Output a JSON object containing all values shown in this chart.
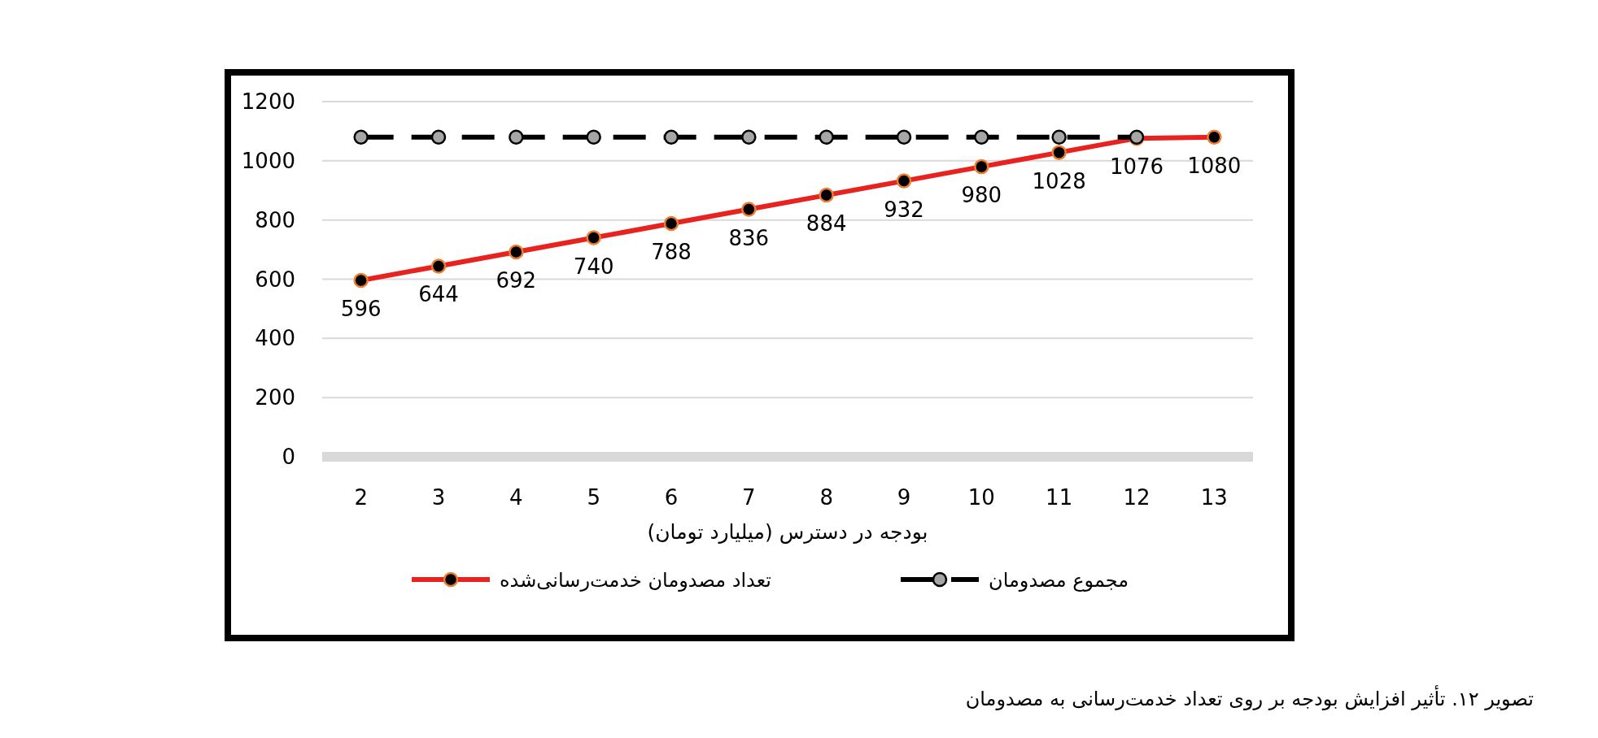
{
  "chart_data": {
    "type": "line",
    "xlabel": "بودجه در دسترس (میلیارد تومان)",
    "categories": [
      "2",
      "3",
      "4",
      "5",
      "6",
      "7",
      "8",
      "9",
      "10",
      "11",
      "12",
      "13"
    ],
    "series": [
      {
        "name": "مجموع مصدومان",
        "color": "#000000",
        "line_style": "dashed",
        "marker": "circle",
        "values": [
          1080,
          1080,
          1080,
          1080,
          1080,
          1080,
          1080,
          1080,
          1080,
          1080,
          1080,
          null
        ]
      },
      {
        "name": "تعداد مصدومان خدمت‌رسانی‌شده",
        "color": "#e8231f",
        "line_style": "solid",
        "marker": "circle",
        "values": [
          596,
          644,
          692,
          740,
          788,
          836,
          884,
          932,
          980,
          1028,
          1076,
          1080
        ],
        "value_labels": [
          "596",
          "644",
          "692",
          "740",
          "788",
          "836",
          "884",
          "932",
          "980",
          "1028",
          "1076",
          "1080"
        ]
      }
    ],
    "ylim": [
      0,
      1200
    ],
    "yticks": [
      0,
      200,
      400,
      600,
      800,
      1000,
      1200
    ],
    "grid": "y",
    "legend": "bottom",
    "annotations": [
      "تصویر ۱۲. تأثیر افزایش بودجه بر روی تعداد خدمت‌رسانی به مصدومان"
    ]
  }
}
